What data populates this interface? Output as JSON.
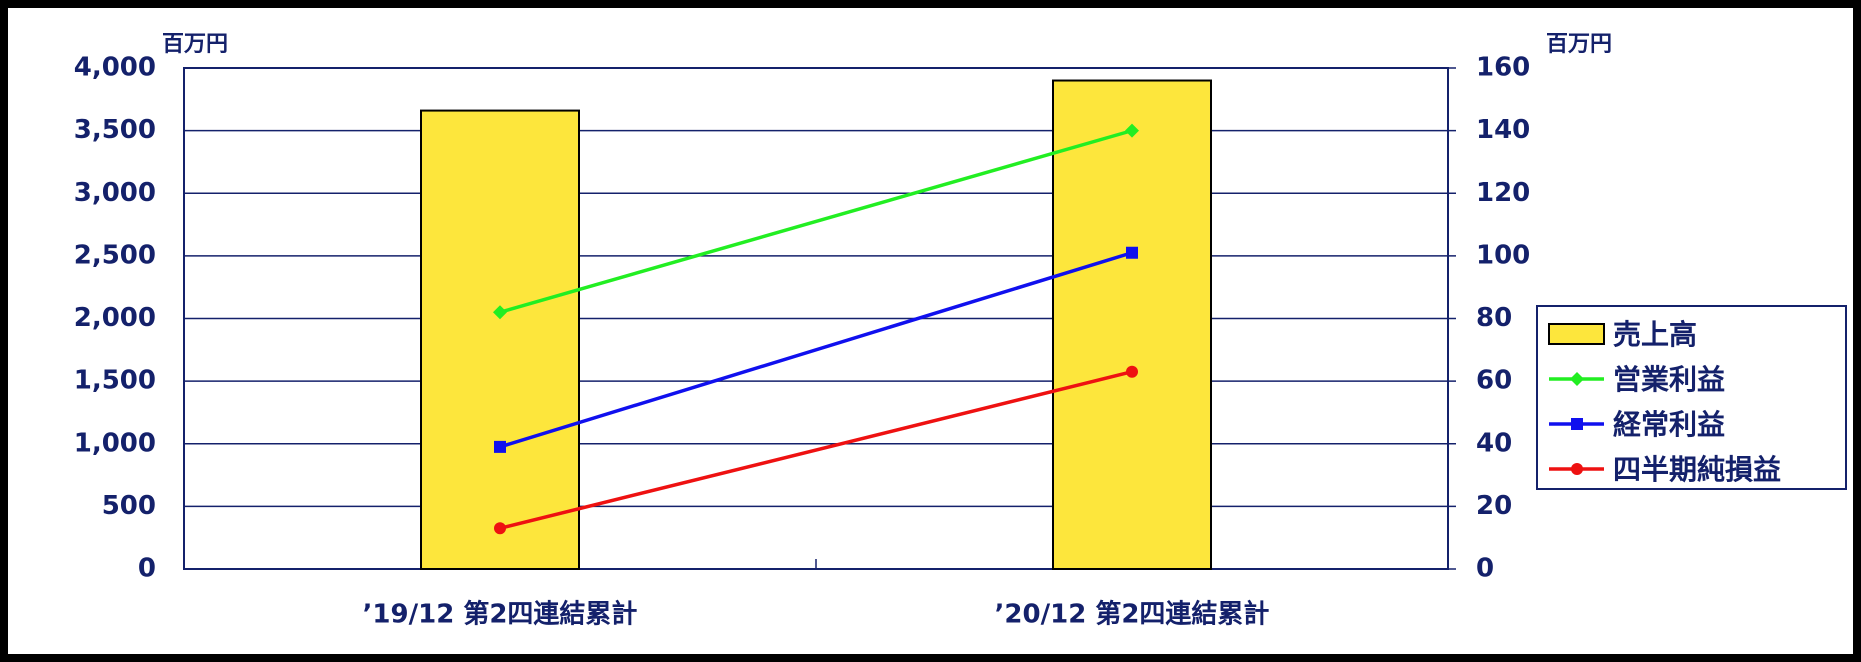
{
  "chart_data": {
    "type": "bar",
    "y_unit": "百万円",
    "y2_unit": "百万円",
    "categories": [
      "’19/12 第2四連結累計",
      "’20/12 第2四連結累計"
    ],
    "series": [
      {
        "name": "売上高",
        "type": "bar",
        "color": "#fde63c",
        "values": [
          3660,
          3900
        ]
      },
      {
        "name": "営業利益",
        "type": "line",
        "axis": "y2",
        "marker": "diamond",
        "color": "#22ee22",
        "values": [
          82,
          140
        ]
      },
      {
        "name": "経常利益",
        "type": "line",
        "axis": "y2",
        "marker": "square",
        "color": "#1010ee",
        "values": [
          39,
          101
        ]
      },
      {
        "name": "四半期純損益",
        "type": "line",
        "axis": "y2",
        "marker": "circle",
        "color": "#ee1111",
        "values": [
          13,
          63
        ]
      }
    ],
    "ylim": [
      0,
      4000
    ],
    "yticks": [
      0,
      500,
      {
        "value": 1000,
        "label": "1,000"
      },
      {
        "value": 1500,
        "label": "1,500"
      },
      {
        "value": 2000,
        "label": "2,000"
      },
      {
        "value": 2500,
        "label": "2,500"
      },
      {
        "value": 3000,
        "label": "3,000"
      },
      {
        "value": 3500,
        "label": "3,500"
      },
      {
        "value": 4000,
        "label": "4,000"
      }
    ],
    "y2lim": [
      0,
      160
    ],
    "y2ticks": [
      0,
      20,
      40,
      60,
      80,
      100,
      120,
      140,
      160
    ],
    "grid": true,
    "legend": "right"
  }
}
